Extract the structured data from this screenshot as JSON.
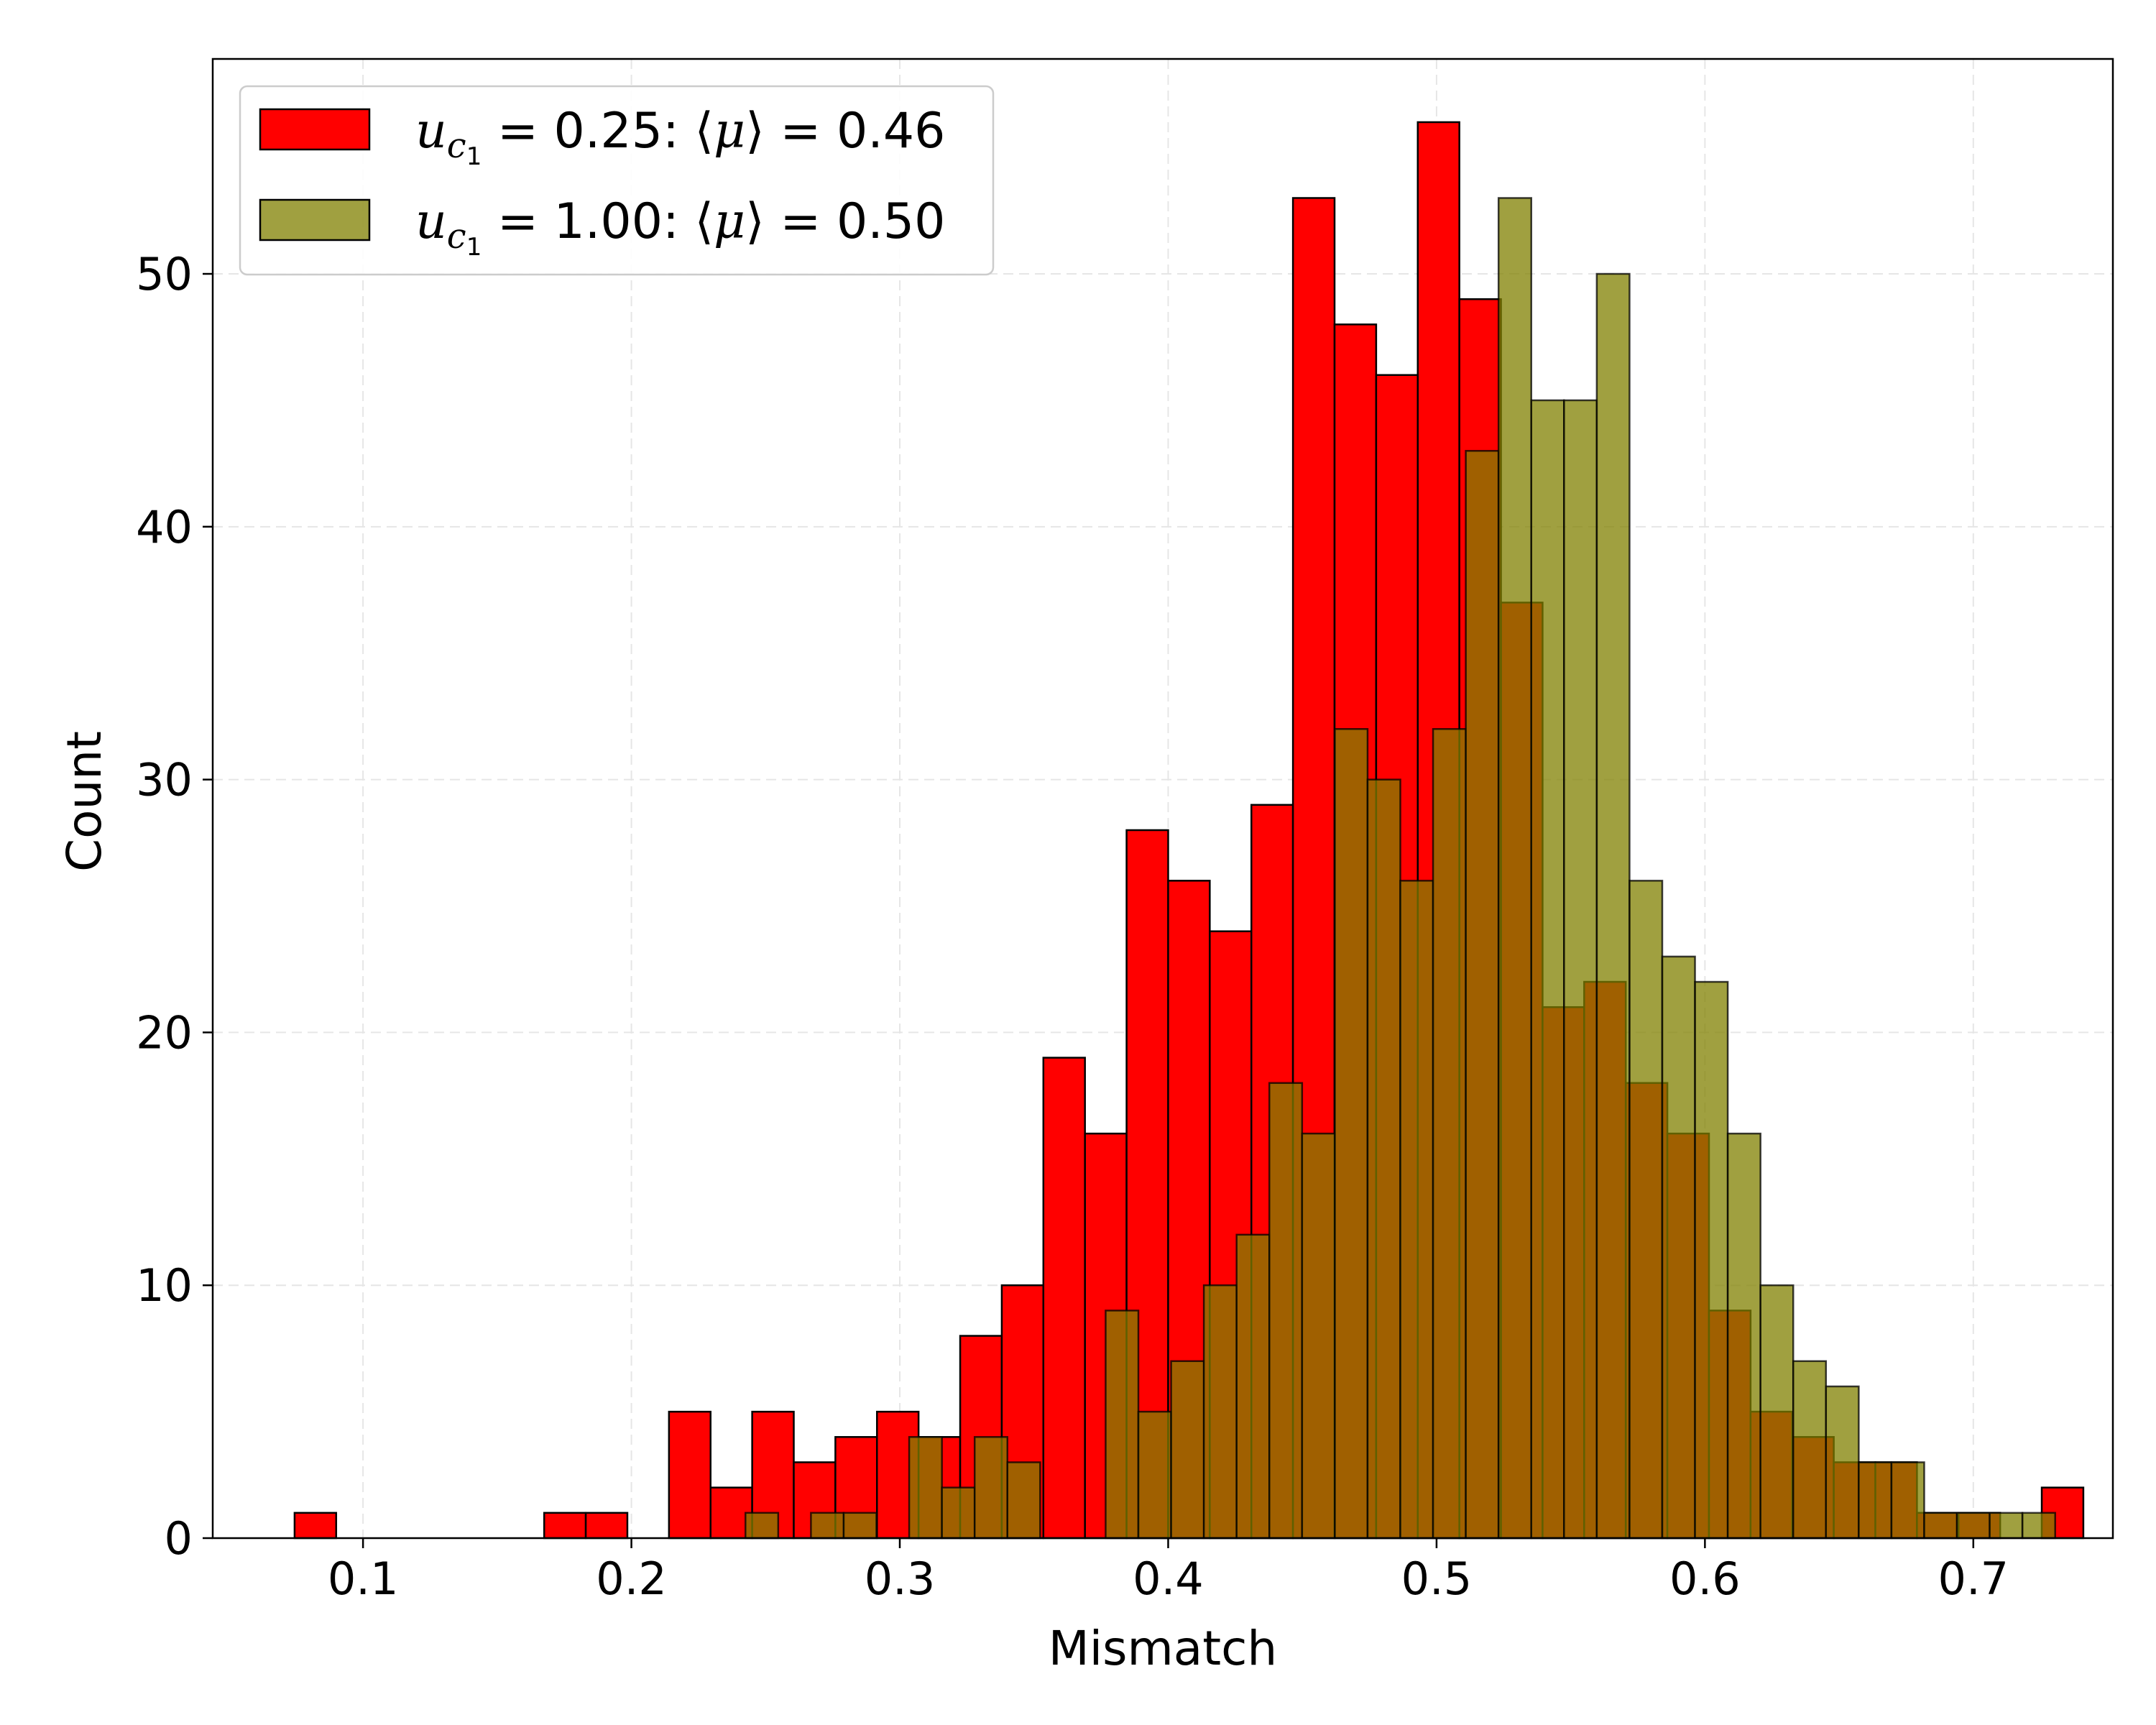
{
  "chart_data": {
    "type": "bar",
    "subtype": "overlapping-histogram",
    "title": "",
    "xlabel": "Mismatch",
    "ylabel": "Count",
    "xlim": [
      0.044,
      0.752
    ],
    "ylim": [
      0,
      58.5
    ],
    "xticks": [
      0.1,
      0.2,
      0.3,
      0.4,
      0.5,
      0.6,
      0.7
    ],
    "xtick_labels": [
      "0.1",
      "0.2",
      "0.3",
      "0.4",
      "0.5",
      "0.6",
      "0.7"
    ],
    "yticks": [
      0,
      10,
      20,
      30,
      40,
      50
    ],
    "ytick_labels": [
      "0",
      "10",
      "20",
      "30",
      "40",
      "50"
    ],
    "grid": true,
    "legend_position": "top-left",
    "series": [
      {
        "legend": {
          "var": "u",
          "sub": "c",
          "subsub": "1",
          "value": "0.25",
          "mean_symbol": "μ",
          "mean": "0.46"
        },
        "color": "#ff0000",
        "opacity": 1.0,
        "bin_start": 0.0745,
        "bin_width": 0.0155,
        "counts": [
          1,
          0,
          0,
          0,
          0,
          0,
          1,
          1,
          0,
          5,
          2,
          5,
          3,
          4,
          5,
          4,
          8,
          10,
          19,
          16,
          28,
          26,
          24,
          29,
          53,
          48,
          46,
          56,
          49,
          37,
          21,
          22,
          18,
          16,
          9,
          5,
          4,
          3,
          3,
          1,
          1,
          0,
          2
        ]
      },
      {
        "legend": {
          "var": "u",
          "sub": "c",
          "subsub": "1",
          "value": "1.00",
          "mean_symbol": "μ",
          "mean": "0.50"
        },
        "color": "#808000",
        "opacity": 0.75,
        "bin_start": 0.2425,
        "bin_width": 0.0122,
        "counts": [
          1,
          0,
          1,
          1,
          0,
          4,
          2,
          4,
          3,
          0,
          0,
          9,
          5,
          7,
          10,
          12,
          18,
          16,
          32,
          30,
          26,
          32,
          43,
          53,
          45,
          45,
          50,
          26,
          23,
          22,
          16,
          10,
          7,
          6,
          3,
          3,
          1,
          1,
          1,
          1
        ]
      }
    ]
  }
}
